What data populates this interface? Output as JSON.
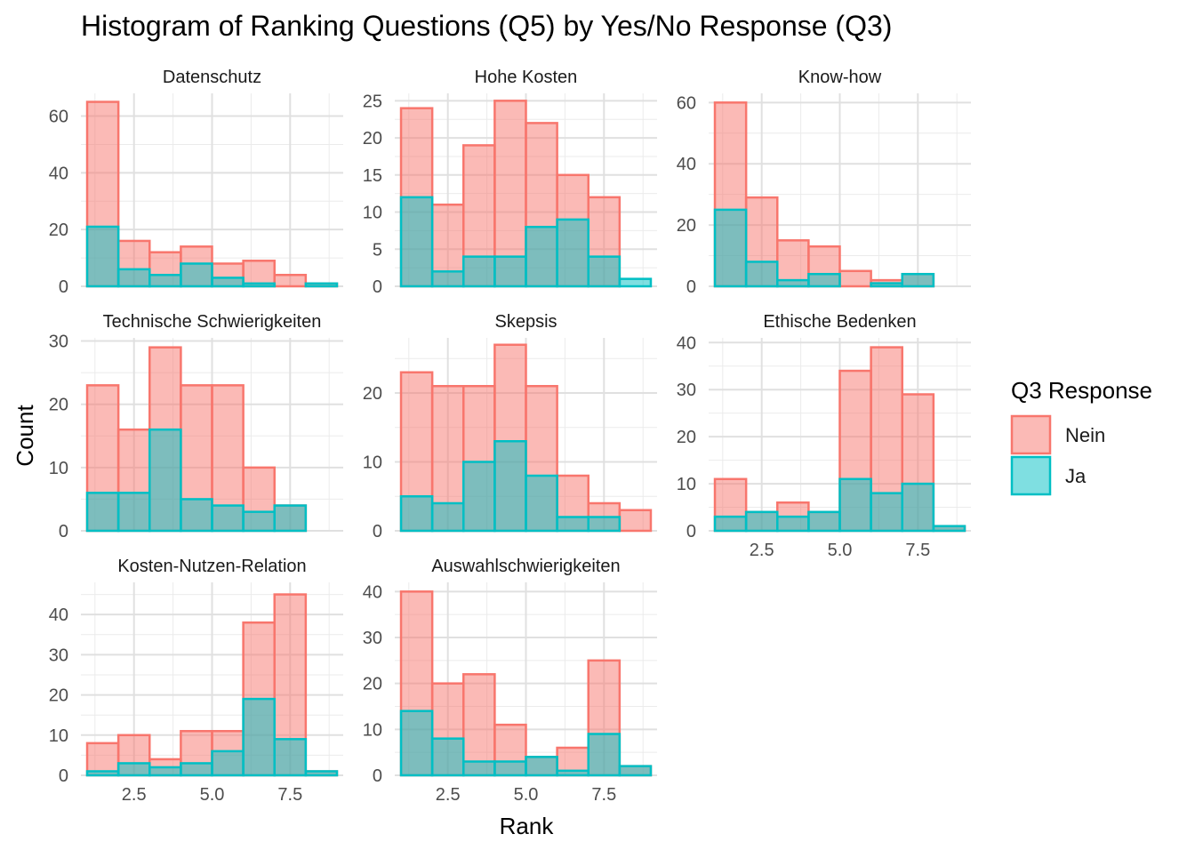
{
  "chart_data": {
    "type": "histogram-faceted",
    "title": "Histogram of Ranking Questions (Q5) by Yes/No Response (Q3)",
    "xlabel": "Rank",
    "ylabel": "Count",
    "xlim": [
      0.8,
      9.2
    ],
    "x_ticks": [
      2.5,
      5.0,
      7.5
    ],
    "x_tick_labels": [
      "2.5",
      "5.0",
      "7.5"
    ],
    "grid": true,
    "legend": {
      "title": "Q3 Response",
      "position": "right",
      "entries": [
        {
          "name": "Nein",
          "fill": "#F8766D",
          "fill_opacity": 0.5,
          "stroke": "#F8766D"
        },
        {
          "name": "Ja",
          "fill": "#00BFC4",
          "fill_opacity": 0.5,
          "stroke": "#00BFC4"
        }
      ]
    },
    "bins": [
      [
        1,
        2
      ],
      [
        2,
        3
      ],
      [
        3,
        4
      ],
      [
        4,
        5
      ],
      [
        5,
        6
      ],
      [
        6,
        7
      ],
      [
        7,
        8
      ],
      [
        8,
        9
      ]
    ],
    "facets": [
      {
        "name": "Datenschutz",
        "ylim": [
          0,
          68
        ],
        "y_ticks": [
          0,
          20,
          40,
          60
        ],
        "series": [
          {
            "name": "Nein",
            "values": [
              65,
              16,
              12,
              14,
              8,
              9,
              4,
              1
            ]
          },
          {
            "name": "Ja",
            "values": [
              21,
              6,
              4,
              8,
              3,
              1,
              0,
              1
            ]
          }
        ]
      },
      {
        "name": "Hohe Kosten",
        "ylim": [
          0,
          26
        ],
        "y_ticks": [
          0,
          5,
          10,
          15,
          20,
          25
        ],
        "series": [
          {
            "name": "Nein",
            "values": [
              24,
              11,
              19,
              25,
              22,
              15,
              12,
              0
            ]
          },
          {
            "name": "Ja",
            "values": [
              12,
              2,
              4,
              4,
              8,
              9,
              4,
              1
            ]
          }
        ]
      },
      {
        "name": "Know-how",
        "ylim": [
          0,
          63
        ],
        "y_ticks": [
          0,
          20,
          40,
          60
        ],
        "series": [
          {
            "name": "Nein",
            "values": [
              60,
              29,
              15,
              13,
              5,
              2,
              4,
              0
            ]
          },
          {
            "name": "Ja",
            "values": [
              25,
              8,
              2,
              4,
              0,
              1,
              4,
              0
            ]
          }
        ]
      },
      {
        "name": "Technische Schwierigkeiten",
        "ylim": [
          0,
          30.5
        ],
        "y_ticks": [
          0,
          10,
          20,
          30
        ],
        "series": [
          {
            "name": "Nein",
            "values": [
              23,
              16,
              29,
              23,
              23,
              10,
              4,
              0
            ]
          },
          {
            "name": "Ja",
            "values": [
              6,
              6,
              16,
              5,
              4,
              3,
              4,
              0
            ]
          }
        ]
      },
      {
        "name": "Skepsis",
        "ylim": [
          0,
          28
        ],
        "y_ticks": [
          0,
          10,
          20
        ],
        "series": [
          {
            "name": "Nein",
            "values": [
              23,
              21,
              21,
              27,
              21,
              8,
              4,
              3
            ]
          },
          {
            "name": "Ja",
            "values": [
              5,
              4,
              10,
              13,
              8,
              2,
              2,
              0
            ]
          }
        ]
      },
      {
        "name": "Ethische Bedenken",
        "ylim": [
          0,
          41
        ],
        "y_ticks": [
          0,
          10,
          20,
          30,
          40
        ],
        "series": [
          {
            "name": "Nein",
            "values": [
              11,
              4,
              6,
              4,
              34,
              39,
              29,
              1
            ]
          },
          {
            "name": "Ja",
            "values": [
              3,
              4,
              3,
              4,
              11,
              8,
              10,
              1
            ]
          }
        ]
      },
      {
        "name": "Kosten-Nutzen-Relation",
        "ylim": [
          0,
          48
        ],
        "y_ticks": [
          0,
          10,
          20,
          30,
          40
        ],
        "series": [
          {
            "name": "Nein",
            "values": [
              8,
              10,
              4,
              11,
              11,
              38,
              45,
              1
            ]
          },
          {
            "name": "Ja",
            "values": [
              1,
              3,
              2,
              3,
              6,
              19,
              9,
              1
            ]
          }
        ]
      },
      {
        "name": "Auswahlschwierigkeiten",
        "ylim": [
          0,
          42
        ],
        "y_ticks": [
          0,
          10,
          20,
          30,
          40
        ],
        "series": [
          {
            "name": "Nein",
            "values": [
              40,
              20,
              22,
              11,
              4,
              6,
              25,
              2
            ]
          },
          {
            "name": "Ja",
            "values": [
              14,
              8,
              3,
              3,
              4,
              1,
              9,
              2
            ]
          }
        ]
      }
    ]
  }
}
